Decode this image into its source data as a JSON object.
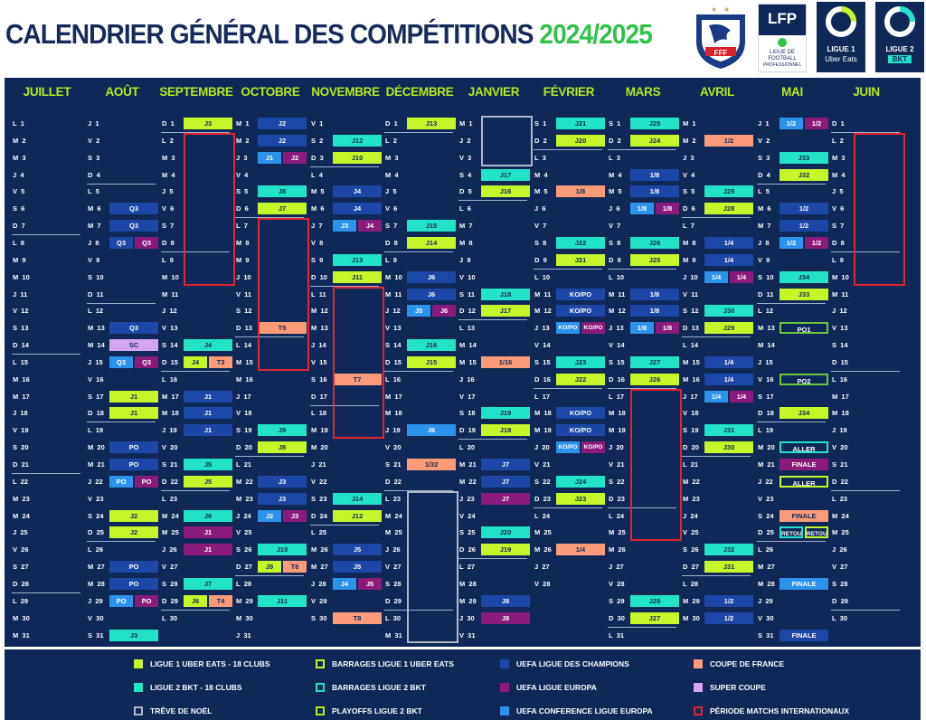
{
  "title": {
    "main": "CALENDRIER GÉNÉRAL DES COMPÉTITIONS",
    "season": "2024/2025"
  },
  "logos": {
    "fff": {
      "label": "FFF"
    },
    "lfp": {
      "main": "LFP",
      "sub1": "LIGUE DE",
      "sub2": "FOOTBALL",
      "sub3": "PROFESSIONNEL"
    },
    "ligue1": {
      "line1": "LIGUE 1",
      "line2": "Uber Eats"
    },
    "ligue2": {
      "line1": "LIGUE 2",
      "line2": "BKT"
    }
  },
  "colors": {
    "board": "#0f2858",
    "title": "#162a5c",
    "season": "#32c24a",
    "month": "#b6ea1e",
    "L1": "#c6f52a",
    "L2": "#22e3c7",
    "UCL": "#1b47a6",
    "UEL": "#8a1b7c",
    "UECL": "#2d93ea",
    "CDF": "#fb9b7a",
    "SC": "#d4a6f0",
    "red": "#e0262f",
    "gray": "#b3b8c4"
  },
  "months": [
    {
      "name": "JUILLET",
      "days": "L 1|M 2|M 3|J 4|V 5|S 6|D 7|L 8|M 9|M 10|J 11|V 12|S 13|D 14|L 15|M 16|M 17|J 18|V 19|S 20|D 21|L 22|M 23|M 24|J 25|V 26|S 27|D 28|L 29|M 30|M 31"
    },
    {
      "name": "AOÛT",
      "days": "J 1|V 2|S 3|D 4|L 5|M 6|M 7|J 8|V 9|S 10|D 11|L 12|M 13|M 14|J 15|V 16|S 17|D 18|L 19|M 20|M 21|J 22|V 23|S 24|D 25|L 26|M 27|M 28|J 29|V 30|S 31"
    },
    {
      "name": "SEPTEMBRE",
      "days": "D 1|L 2|M 3|M 4|J 5|V 6|S 7|D 8|L 9|M 10|M 11|J 12|V 13|S 14|D 15|L 16|M 17|M 18|J 19|V 20|S 21|D 22|L 23|M 24|M 25|J 26|V 27|S 28|D 29|L 30"
    },
    {
      "name": "OCTOBRE",
      "days": "M 1|M 2|J 3|V 4|S 5|D 6|L 7|M 8|M 9|J 10|V 11|S 12|D 13|L 14|M 15|M 16|J 17|V 18|S 19|D 20|L 21|M 22|M 23|J 24|V 25|S 26|D 27|L 28|M 29|M 30|J 31"
    },
    {
      "name": "NOVEMBRE",
      "days": "V 1|S 2|D 3|L 4|M 5|M 6|J 7|V 8|S 9|D 10|L 11|M 12|M 13|J 14|V 15|S 16|D 17|L 18|M 19|M 20|J 21|V 22|S 23|D 24|L 25|M 26|M 27|J 28|V 29|S 30"
    },
    {
      "name": "DÉCEMBRE",
      "days": "D 1|L 2|M 3|M 4|J 5|V 6|S 7|D 8|L 9|M 10|M 11|J 12|V 13|S 14|D 15|L 16|M 17|M 18|J 19|V 20|S 21|D 22|L 23|M 24|M 25|J 26|V 27|S 28|D 29|L 30|M 31"
    },
    {
      "name": "JANVIER",
      "days": "M 1|J 2|V 3|S 4|D 5|L 6|M 7|M 8|J 9|V 10|S 11|D 12|L 13|M 14|M 15|J 16|V 17|S 18|D 19|L 20|M 21|M 22|J 23|V 24|S 25|D 26|L 27|M 28|M 29|J 30|V 31"
    },
    {
      "name": "FÉVRIER",
      "days": "S 1|D 2|L 3|M 4|M 5|J 6|V 7|S 8|D 9|L 10|M 11|M 12|J 13|V 14|S 15|D 16|L 17|M 18|M 19|J 20|V 21|S 22|D 23|L 24|M 25|M 26|J 27|V 28"
    },
    {
      "name": "MARS",
      "days": "S 1|D 2|L 3|M 4|M 5|J 6|V 7|S 8|D 9|L 10|M 11|M 12|J 13|V 14|S 15|D 16|L 17|M 18|M 19|J 20|V 21|S 22|D 23|L 24|M 25|M 26|J 27|V 28|S 29|D 30|L 31"
    },
    {
      "name": "AVRIL",
      "days": "M 1|M 2|J 3|V 4|S 5|D 6|L 7|M 8|M 9|J 10|V 11|S 12|D 13|L 14|M 15|M 16|J 17|V 18|S 19|D 20|L 21|M 22|M 23|J 24|V 25|S 26|D 27|L 28|M 29|M 30"
    },
    {
      "name": "MAI",
      "days": "J 1|V 2|S 3|D 4|L 5|M 6|M 7|J 8|V 9|S 10|D 11|L 12|M 13|M 14|J 15|V 16|S 17|D 18|L 19|M 20|M 21|J 22|V 23|S 24|D 25|L 26|M 27|M 28|J 29|V 30|S 31"
    },
    {
      "name": "JUIN",
      "days": "D 1|L 2|M 3|M 4|J 5|V 6|S 7|D 8|L 9|M 10|M 11|J 12|V 13|S 14|D 15|L 16|M 17|M 18|J 19|V 20|S 21|D 22|L 23|M 24|M 25|J 26|V 27|S 28|D 29|L 30"
    }
  ],
  "events": [
    {
      "m": 1,
      "d": 6,
      "s": 0,
      "t": "UCL",
      "l": "Q3"
    },
    {
      "m": 1,
      "d": 7,
      "s": 0,
      "t": "UCL",
      "l": "Q3"
    },
    {
      "m": 1,
      "d": 8,
      "s": 1,
      "t": "UCL",
      "l": "Q3"
    },
    {
      "m": 1,
      "d": 8,
      "s": 2,
      "t": "UEL",
      "l": "Q3"
    },
    {
      "m": 1,
      "d": 13,
      "s": 0,
      "t": "UCL",
      "l": "Q3"
    },
    {
      "m": 1,
      "d": 14,
      "s": 0,
      "t": "SC",
      "l": "SC"
    },
    {
      "m": 1,
      "d": 15,
      "s": 1,
      "t": "UECL",
      "l": "Q3"
    },
    {
      "m": 1,
      "d": 15,
      "s": 2,
      "t": "UEL",
      "l": "Q3"
    },
    {
      "m": 1,
      "d": 17,
      "s": 0,
      "t": "L1",
      "l": "J1"
    },
    {
      "m": 1,
      "d": 18,
      "s": 0,
      "t": "L1",
      "l": "J1"
    },
    {
      "m": 1,
      "d": 20,
      "s": 0,
      "t": "UCL",
      "l": "PO"
    },
    {
      "m": 1,
      "d": 21,
      "s": 0,
      "t": "UCL",
      "l": "PO"
    },
    {
      "m": 1,
      "d": 22,
      "s": 1,
      "t": "UECL",
      "l": "PO"
    },
    {
      "m": 1,
      "d": 22,
      "s": 2,
      "t": "UEL",
      "l": "PO"
    },
    {
      "m": 1,
      "d": 24,
      "s": 0,
      "t": "L1",
      "l": "J2"
    },
    {
      "m": 1,
      "d": 25,
      "s": 0,
      "t": "L1",
      "l": "J2"
    },
    {
      "m": 1,
      "d": 27,
      "s": 0,
      "t": "UCL",
      "l": "PO"
    },
    {
      "m": 1,
      "d": 28,
      "s": 0,
      "t": "UCL",
      "l": "PO"
    },
    {
      "m": 1,
      "d": 29,
      "s": 1,
      "t": "UECL",
      "l": "PO"
    },
    {
      "m": 1,
      "d": 29,
      "s": 2,
      "t": "UEL",
      "l": "PO"
    },
    {
      "m": 1,
      "d": 31,
      "s": 0,
      "t": "L2",
      "l": "J3"
    },
    {
      "m": 2,
      "d": 1,
      "s": 0,
      "t": "L1",
      "l": "J3"
    },
    {
      "m": 2,
      "d": 14,
      "s": 0,
      "t": "L2",
      "l": "J4"
    },
    {
      "m": 2,
      "d": 15,
      "s": 1,
      "t": "L1",
      "l": "J4"
    },
    {
      "m": 2,
      "d": 15,
      "s": 2,
      "t": "CDF",
      "l": "T3"
    },
    {
      "m": 2,
      "d": 17,
      "s": 0,
      "t": "UCL",
      "l": "J1"
    },
    {
      "m": 2,
      "d": 18,
      "s": 0,
      "t": "UCL",
      "l": "J1"
    },
    {
      "m": 2,
      "d": 19,
      "s": 0,
      "t": "UCL",
      "l": "J1"
    },
    {
      "m": 2,
      "d": 21,
      "s": 0,
      "t": "L2",
      "l": "J5"
    },
    {
      "m": 2,
      "d": 22,
      "s": 0,
      "t": "L1",
      "l": "J5"
    },
    {
      "m": 2,
      "d": 24,
      "s": 0,
      "t": "L2",
      "l": "J6"
    },
    {
      "m": 2,
      "d": 25,
      "s": 0,
      "t": "UEL",
      "l": "J1"
    },
    {
      "m": 2,
      "d": 26,
      "s": 0,
      "t": "UEL",
      "l": "J1"
    },
    {
      "m": 2,
      "d": 28,
      "s": 0,
      "t": "L2",
      "l": "J7"
    },
    {
      "m": 2,
      "d": 29,
      "s": 1,
      "t": "L1",
      "l": "J6"
    },
    {
      "m": 2,
      "d": 29,
      "s": 2,
      "t": "CDF",
      "l": "T4"
    },
    {
      "m": 3,
      "d": 1,
      "s": 0,
      "t": "UCL",
      "l": "J2"
    },
    {
      "m": 3,
      "d": 2,
      "s": 0,
      "t": "UCL",
      "l": "J2"
    },
    {
      "m": 3,
      "d": 3,
      "s": 1,
      "t": "UECL",
      "l": "J1"
    },
    {
      "m": 3,
      "d": 3,
      "s": 2,
      "t": "UEL",
      "l": "J2"
    },
    {
      "m": 3,
      "d": 5,
      "s": 0,
      "t": "L2",
      "l": "J8"
    },
    {
      "m": 3,
      "d": 6,
      "s": 0,
      "t": "L1",
      "l": "J7"
    },
    {
      "m": 3,
      "d": 13,
      "s": 0,
      "t": "CDF",
      "l": "T5"
    },
    {
      "m": 3,
      "d": 19,
      "s": 0,
      "t": "L2",
      "l": "J9"
    },
    {
      "m": 3,
      "d": 20,
      "s": 0,
      "t": "L1",
      "l": "J8"
    },
    {
      "m": 3,
      "d": 22,
      "s": 0,
      "t": "UCL",
      "l": "J3"
    },
    {
      "m": 3,
      "d": 23,
      "s": 0,
      "t": "UCL",
      "l": "J3"
    },
    {
      "m": 3,
      "d": 24,
      "s": 1,
      "t": "UECL",
      "l": "J2"
    },
    {
      "m": 3,
      "d": 24,
      "s": 2,
      "t": "UEL",
      "l": "J3"
    },
    {
      "m": 3,
      "d": 26,
      "s": 0,
      "t": "L2",
      "l": "J10"
    },
    {
      "m": 3,
      "d": 27,
      "s": 1,
      "t": "L1",
      "l": "J9"
    },
    {
      "m": 3,
      "d": 27,
      "s": 2,
      "t": "CDF",
      "l": "T6"
    },
    {
      "m": 3,
      "d": 29,
      "s": 0,
      "t": "L2",
      "l": "J11"
    },
    {
      "m": 4,
      "d": 2,
      "s": 0,
      "t": "L2",
      "l": "J12"
    },
    {
      "m": 4,
      "d": 3,
      "s": 0,
      "t": "L1",
      "l": "J10"
    },
    {
      "m": 4,
      "d": 5,
      "s": 0,
      "t": "UCL",
      "l": "J4"
    },
    {
      "m": 4,
      "d": 6,
      "s": 0,
      "t": "UCL",
      "l": "J4"
    },
    {
      "m": 4,
      "d": 7,
      "s": 1,
      "t": "UECL",
      "l": "J3"
    },
    {
      "m": 4,
      "d": 7,
      "s": 2,
      "t": "UEL",
      "l": "J4"
    },
    {
      "m": 4,
      "d": 9,
      "s": 0,
      "t": "L2",
      "l": "J13"
    },
    {
      "m": 4,
      "d": 10,
      "s": 0,
      "t": "L1",
      "l": "J11"
    },
    {
      "m": 4,
      "d": 16,
      "s": 0,
      "t": "CDF",
      "l": "T7"
    },
    {
      "m": 4,
      "d": 23,
      "s": 0,
      "t": "L2",
      "l": "J14"
    },
    {
      "m": 4,
      "d": 24,
      "s": 0,
      "t": "L1",
      "l": "J12"
    },
    {
      "m": 4,
      "d": 26,
      "s": 0,
      "t": "UCL",
      "l": "J5"
    },
    {
      "m": 4,
      "d": 27,
      "s": 0,
      "t": "UCL",
      "l": "J5"
    },
    {
      "m": 4,
      "d": 28,
      "s": 1,
      "t": "UECL",
      "l": "J4"
    },
    {
      "m": 4,
      "d": 28,
      "s": 2,
      "t": "UEL",
      "l": "J5"
    },
    {
      "m": 4,
      "d": 30,
      "s": 0,
      "t": "CDF",
      "l": "T8"
    },
    {
      "m": 5,
      "d": 1,
      "s": 0,
      "t": "L1",
      "l": "J13"
    },
    {
      "m": 5,
      "d": 7,
      "s": 0,
      "t": "L2",
      "l": "J15"
    },
    {
      "m": 5,
      "d": 8,
      "s": 0,
      "t": "L1",
      "l": "J14"
    },
    {
      "m": 5,
      "d": 10,
      "s": 0,
      "t": "UCL",
      "l": "J6"
    },
    {
      "m": 5,
      "d": 11,
      "s": 0,
      "t": "UCL",
      "l": "J6"
    },
    {
      "m": 5,
      "d": 12,
      "s": 1,
      "t": "UECL",
      "l": "J5"
    },
    {
      "m": 5,
      "d": 12,
      "s": 2,
      "t": "UEL",
      "l": "J6"
    },
    {
      "m": 5,
      "d": 14,
      "s": 0,
      "t": "L2",
      "l": "J16"
    },
    {
      "m": 5,
      "d": 15,
      "s": 0,
      "t": "L1",
      "l": "J15"
    },
    {
      "m": 5,
      "d": 19,
      "s": 0,
      "t": "UECL",
      "l": "J6"
    },
    {
      "m": 5,
      "d": 21,
      "s": 0,
      "t": "CDF",
      "l": "1/32"
    },
    {
      "m": 6,
      "d": 4,
      "s": 0,
      "t": "L2",
      "l": "J17"
    },
    {
      "m": 6,
      "d": 5,
      "s": 0,
      "t": "L1",
      "l": "J16"
    },
    {
      "m": 6,
      "d": 11,
      "s": 0,
      "t": "L2",
      "l": "J18"
    },
    {
      "m": 6,
      "d": 12,
      "s": 0,
      "t": "L1",
      "l": "J17"
    },
    {
      "m": 6,
      "d": 15,
      "s": 0,
      "t": "CDF",
      "l": "1/16"
    },
    {
      "m": 6,
      "d": 18,
      "s": 0,
      "t": "L2",
      "l": "J19"
    },
    {
      "m": 6,
      "d": 19,
      "s": 0,
      "t": "L1",
      "l": "J18"
    },
    {
      "m": 6,
      "d": 21,
      "s": 0,
      "t": "UCL",
      "l": "J7"
    },
    {
      "m": 6,
      "d": 22,
      "s": 0,
      "t": "UCL",
      "l": "J7"
    },
    {
      "m": 6,
      "d": 23,
      "s": 0,
      "t": "UEL",
      "l": "J7"
    },
    {
      "m": 6,
      "d": 25,
      "s": 0,
      "t": "L2",
      "l": "J20"
    },
    {
      "m": 6,
      "d": 26,
      "s": 0,
      "t": "L1",
      "l": "J19"
    },
    {
      "m": 6,
      "d": 29,
      "s": 0,
      "t": "UCL",
      "l": "J8"
    },
    {
      "m": 6,
      "d": 30,
      "s": 0,
      "t": "UEL",
      "l": "J8"
    },
    {
      "m": 7,
      "d": 1,
      "s": 0,
      "t": "L2",
      "l": "J21"
    },
    {
      "m": 7,
      "d": 2,
      "s": 0,
      "t": "L1",
      "l": "J20"
    },
    {
      "m": 7,
      "d": 5,
      "s": 0,
      "t": "CDF",
      "l": "1/8"
    },
    {
      "m": 7,
      "d": 8,
      "s": 0,
      "t": "L2",
      "l": "J22"
    },
    {
      "m": 7,
      "d": 9,
      "s": 0,
      "t": "L1",
      "l": "J21"
    },
    {
      "m": 7,
      "d": 11,
      "s": 0,
      "t": "UCL",
      "l": "KO/PO"
    },
    {
      "m": 7,
      "d": 12,
      "s": 0,
      "t": "UCL",
      "l": "KO/PO"
    },
    {
      "m": 7,
      "d": 13,
      "s": 1,
      "t": "UECL",
      "l": "KO/PO"
    },
    {
      "m": 7,
      "d": 13,
      "s": 2,
      "t": "UEL",
      "l": "KO/PO"
    },
    {
      "m": 7,
      "d": 15,
      "s": 0,
      "t": "L2",
      "l": "J23"
    },
    {
      "m": 7,
      "d": 16,
      "s": 0,
      "t": "L1",
      "l": "J22"
    },
    {
      "m": 7,
      "d": 18,
      "s": 0,
      "t": "UCL",
      "l": "KO/PO"
    },
    {
      "m": 7,
      "d": 19,
      "s": 0,
      "t": "UCL",
      "l": "KO/PO"
    },
    {
      "m": 7,
      "d": 20,
      "s": 1,
      "t": "UECL",
      "l": "KO/PO"
    },
    {
      "m": 7,
      "d": 20,
      "s": 2,
      "t": "UEL",
      "l": "KO/PO"
    },
    {
      "m": 7,
      "d": 22,
      "s": 0,
      "t": "L2",
      "l": "J24"
    },
    {
      "m": 7,
      "d": 23,
      "s": 0,
      "t": "L1",
      "l": "J23"
    },
    {
      "m": 7,
      "d": 26,
      "s": 0,
      "t": "CDF",
      "l": "1/4"
    },
    {
      "m": 8,
      "d": 1,
      "s": 0,
      "t": "L2",
      "l": "J25"
    },
    {
      "m": 8,
      "d": 2,
      "s": 0,
      "t": "L1",
      "l": "J24"
    },
    {
      "m": 8,
      "d": 4,
      "s": 0,
      "t": "UCL",
      "l": "1/8"
    },
    {
      "m": 8,
      "d": 5,
      "s": 0,
      "t": "UCL",
      "l": "1/8"
    },
    {
      "m": 8,
      "d": 6,
      "s": 1,
      "t": "UECL",
      "l": "1/8"
    },
    {
      "m": 8,
      "d": 6,
      "s": 2,
      "t": "UEL",
      "l": "1/8"
    },
    {
      "m": 8,
      "d": 8,
      "s": 0,
      "t": "L2",
      "l": "J26"
    },
    {
      "m": 8,
      "d": 9,
      "s": 0,
      "t": "L1",
      "l": "J25"
    },
    {
      "m": 8,
      "d": 11,
      "s": 0,
      "t": "UCL",
      "l": "1/8"
    },
    {
      "m": 8,
      "d": 12,
      "s": 0,
      "t": "UCL",
      "l": "1/8"
    },
    {
      "m": 8,
      "d": 13,
      "s": 1,
      "t": "UECL",
      "l": "1/8"
    },
    {
      "m": 8,
      "d": 13,
      "s": 2,
      "t": "UEL",
      "l": "1/8"
    },
    {
      "m": 8,
      "d": 15,
      "s": 0,
      "t": "L2",
      "l": "J27"
    },
    {
      "m": 8,
      "d": 16,
      "s": 0,
      "t": "L1",
      "l": "J26"
    },
    {
      "m": 8,
      "d": 29,
      "s": 0,
      "t": "L2",
      "l": "J28"
    },
    {
      "m": 8,
      "d": 30,
      "s": 0,
      "t": "L1",
      "l": "J27"
    },
    {
      "m": 9,
      "d": 2,
      "s": 0,
      "t": "CDF",
      "l": "1/2"
    },
    {
      "m": 9,
      "d": 5,
      "s": 0,
      "t": "L2",
      "l": "J29"
    },
    {
      "m": 9,
      "d": 6,
      "s": 0,
      "t": "L1",
      "l": "J28"
    },
    {
      "m": 9,
      "d": 8,
      "s": 0,
      "t": "UCL",
      "l": "1/4"
    },
    {
      "m": 9,
      "d": 9,
      "s": 0,
      "t": "UCL",
      "l": "1/4"
    },
    {
      "m": 9,
      "d": 10,
      "s": 1,
      "t": "UECL",
      "l": "1/4"
    },
    {
      "m": 9,
      "d": 10,
      "s": 2,
      "t": "UEL",
      "l": "1/4"
    },
    {
      "m": 9,
      "d": 12,
      "s": 0,
      "t": "L2",
      "l": "J30"
    },
    {
      "m": 9,
      "d": 13,
      "s": 0,
      "t": "L1",
      "l": "J29"
    },
    {
      "m": 9,
      "d": 15,
      "s": 0,
      "t": "UCL",
      "l": "1/4"
    },
    {
      "m": 9,
      "d": 16,
      "s": 0,
      "t": "UCL",
      "l": "1/4"
    },
    {
      "m": 9,
      "d": 17,
      "s": 1,
      "t": "UECL",
      "l": "1/4"
    },
    {
      "m": 9,
      "d": 17,
      "s": 2,
      "t": "UEL",
      "l": "1/4"
    },
    {
      "m": 9,
      "d": 19,
      "s": 0,
      "t": "L2",
      "l": "J31"
    },
    {
      "m": 9,
      "d": 20,
      "s": 0,
      "t": "L1",
      "l": "J30"
    },
    {
      "m": 9,
      "d": 26,
      "s": 0,
      "t": "L2",
      "l": "J32"
    },
    {
      "m": 9,
      "d": 27,
      "s": 0,
      "t": "L1",
      "l": "J31"
    },
    {
      "m": 9,
      "d": 29,
      "s": 0,
      "t": "UCL",
      "l": "1/2"
    },
    {
      "m": 9,
      "d": 30,
      "s": 0,
      "t": "UCL",
      "l": "1/2"
    },
    {
      "m": 10,
      "d": 1,
      "s": 1,
      "t": "UECL",
      "l": "1/2"
    },
    {
      "m": 10,
      "d": 1,
      "s": 2,
      "t": "UEL",
      "l": "1/2"
    },
    {
      "m": 10,
      "d": 3,
      "s": 0,
      "t": "L2",
      "l": "J33"
    },
    {
      "m": 10,
      "d": 4,
      "s": 0,
      "t": "L1",
      "l": "J32"
    },
    {
      "m": 10,
      "d": 6,
      "s": 0,
      "t": "UCL",
      "l": "1/2"
    },
    {
      "m": 10,
      "d": 7,
      "s": 0,
      "t": "UCL",
      "l": "1/2"
    },
    {
      "m": 10,
      "d": 8,
      "s": 1,
      "t": "UECL",
      "l": "1/2"
    },
    {
      "m": 10,
      "d": 8,
      "s": 2,
      "t": "UEL",
      "l": "1/2"
    },
    {
      "m": 10,
      "d": 10,
      "s": 0,
      "t": "L2",
      "l": "J34"
    },
    {
      "m": 10,
      "d": 11,
      "s": 0,
      "t": "L1",
      "l": "J33"
    },
    {
      "m": 10,
      "d": 13,
      "s": 0,
      "t": "PO2",
      "l": "PO1"
    },
    {
      "m": 10,
      "d": 16,
      "s": 0,
      "t": "PO2",
      "l": "PO2"
    },
    {
      "m": 10,
      "d": 18,
      "s": 0,
      "t": "L1",
      "l": "J34"
    },
    {
      "m": 10,
      "d": 20,
      "s": 0,
      "t": "BL2",
      "l": "ALLER"
    },
    {
      "m": 10,
      "d": 21,
      "s": 0,
      "t": "UEL",
      "l": "FINALE"
    },
    {
      "m": 10,
      "d": 22,
      "s": 0,
      "t": "BL1",
      "l": "ALLER"
    },
    {
      "m": 10,
      "d": 24,
      "s": 0,
      "t": "CDF",
      "l": "FINALE"
    },
    {
      "m": 10,
      "d": 25,
      "s": 1,
      "t": "BL2",
      "l": "RETOUR"
    },
    {
      "m": 10,
      "d": 25,
      "s": 2,
      "t": "BL1",
      "l": "RETOUR"
    },
    {
      "m": 10,
      "d": 28,
      "s": 0,
      "t": "UECL",
      "l": "FINALE"
    },
    {
      "m": 10,
      "d": 31,
      "s": 0,
      "t": "UCL",
      "l": "FINALE"
    }
  ],
  "legend": [
    {
      "t": "L1",
      "label": "LIGUE 1 UBER EATS - 18 CLUBS",
      "fill": true
    },
    {
      "t": "BL1",
      "label": "BARRAGES LIGUE 1 UBER EATS",
      "fill": false
    },
    {
      "t": "UCL",
      "label": "UEFA LIGUE DES CHAMPIONS",
      "fill": true
    },
    {
      "t": "CDF",
      "label": "COUPE DE FRANCE",
      "fill": true
    },
    {
      "t": "L2",
      "label": "LIGUE 2 BKT - 18 CLUBS",
      "fill": true
    },
    {
      "t": "BL2",
      "label": "BARRAGES LIGUE 2 BKT",
      "fill": false
    },
    {
      "t": "UEL",
      "label": "UEFA LIGUE EUROPA",
      "fill": true
    },
    {
      "t": "SC",
      "label": "SUPER COUPE",
      "fill": true
    },
    {
      "t": "gray",
      "label": "TRÊVE DE NOËL",
      "fill": false
    },
    {
      "t": "PO2",
      "label": "PLAYOFFS LIGUE 2 BKT",
      "fill": false
    },
    {
      "t": "UECL",
      "label": "UEFA CONFERENCE LIGUE EUROPA",
      "fill": true
    },
    {
      "t": "red",
      "label": "PÉRIODE MATCHS INTERNATIONAUX",
      "fill": false
    }
  ]
}
